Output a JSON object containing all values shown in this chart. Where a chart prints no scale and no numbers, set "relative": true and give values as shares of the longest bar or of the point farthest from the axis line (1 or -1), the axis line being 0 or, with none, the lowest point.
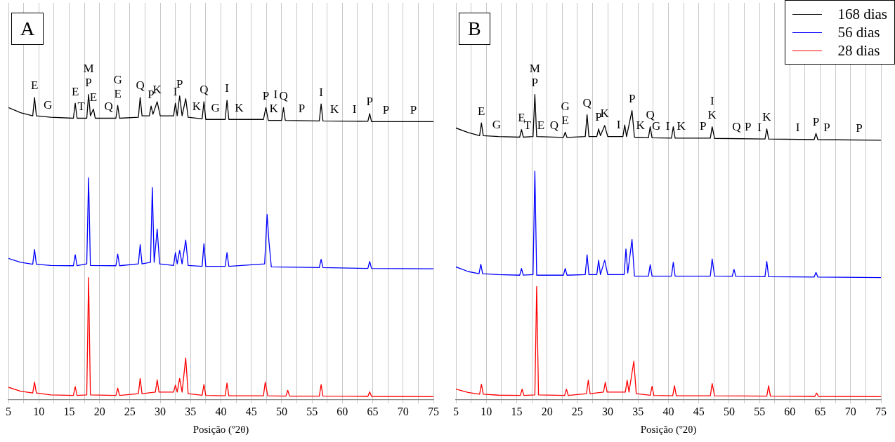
{
  "chart_data": [
    {
      "type": "line",
      "title": "A",
      "xlabel": "Posição (º2θ)",
      "relative": true,
      "grid": "x",
      "marker": "none",
      "line_style": "solid",
      "legend": false,
      "xlim": [
        5,
        75
      ],
      "xticks": [
        5,
        {
          "value": 7.5,
          "label": null
        },
        10,
        {
          "value": 12.5,
          "label": null
        },
        15,
        {
          "value": 17.5,
          "label": null
        },
        20,
        {
          "value": 22.5,
          "label": null
        },
        25,
        {
          "value": 27.5,
          "label": null
        },
        30,
        {
          "value": 32.5,
          "label": null
        },
        35,
        {
          "value": 37.5,
          "label": null
        },
        40,
        {
          "value": 42.5,
          "label": null
        },
        45,
        {
          "value": 47.5,
          "label": null
        },
        50,
        {
          "value": 52.5,
          "label": null
        },
        55,
        {
          "value": 57.5,
          "label": null
        },
        60,
        {
          "value": 62.5,
          "label": null
        },
        65,
        {
          "value": 67.5,
          "label": null
        },
        70,
        {
          "value": 72.5,
          "label": null
        },
        75
      ],
      "series": [
        {
          "color": "#000000",
          "x": [
            5,
            7,
            9,
            9.3,
            9.6,
            12,
            15.7,
            16,
            16.3,
            17.9,
            18.2,
            18.5,
            19,
            19.3,
            22.7,
            23,
            23.3,
            26.4,
            26.7,
            27,
            28.2,
            28.5,
            28.8,
            29.5,
            30,
            32.2,
            32.5,
            32.8,
            33.2,
            33.6,
            34.2,
            34.6,
            36.9,
            37.2,
            37.5,
            40.7,
            41,
            41.3,
            47,
            47.4,
            47.8,
            50,
            50.3,
            50.6,
            56.2,
            56.5,
            56.8,
            64.2,
            64.5,
            64.8,
            75
          ],
          "values": [
            0.957,
            0.94,
            0.93,
            0.99,
            0.93,
            0.925,
            0.922,
            0.971,
            0.922,
            0.922,
            1.0,
            0.93,
            0.952,
            0.922,
            0.922,
            0.964,
            0.922,
            0.925,
            0.99,
            0.93,
            0.93,
            0.962,
            0.935,
            0.976,
            0.93,
            0.93,
            0.971,
            0.93,
            0.995,
            0.93,
            0.986,
            0.925,
            0.92,
            0.976,
            0.918,
            0.918,
            0.981,
            0.918,
            0.918,
            0.957,
            0.915,
            0.915,
            0.957,
            0.915,
            0.913,
            0.969,
            0.913,
            0.912,
            0.937,
            0.911,
            0.911
          ]
        },
        {
          "color": "#0000ff",
          "x": [
            5,
            7,
            9,
            9.3,
            9.6,
            12,
            15.7,
            16,
            16.3,
            17.9,
            18.2,
            18.5,
            22.7,
            23,
            23.3,
            26.4,
            26.7,
            27,
            28.4,
            28.7,
            29,
            29.5,
            29.9,
            32.2,
            32.5,
            32.8,
            33.2,
            33.6,
            34.2,
            34.6,
            36.9,
            37.2,
            37.5,
            40.7,
            41,
            41.3,
            47.2,
            47.6,
            47.9,
            48.3,
            56.2,
            56.5,
            56.8,
            64.2,
            64.5,
            64.8,
            75
          ],
          "values": [
            0.463,
            0.45,
            0.444,
            0.492,
            0.444,
            0.44,
            0.439,
            0.475,
            0.439,
            0.445,
            0.727,
            0.44,
            0.439,
            0.477,
            0.439,
            0.445,
            0.508,
            0.445,
            0.45,
            0.695,
            0.45,
            0.559,
            0.445,
            0.44,
            0.482,
            0.445,
            0.489,
            0.445,
            0.523,
            0.44,
            0.437,
            0.511,
            0.437,
            0.437,
            0.482,
            0.437,
            0.445,
            0.607,
            0.52,
            0.435,
            0.433,
            0.46,
            0.433,
            0.43,
            0.453,
            0.43,
            0.429
          ]
        },
        {
          "color": "#ff0000",
          "x": [
            5,
            7,
            9,
            9.3,
            9.6,
            12,
            15.7,
            16,
            16.3,
            17.9,
            18.2,
            18.5,
            22.7,
            23,
            23.3,
            26.4,
            26.7,
            27,
            29.2,
            29.5,
            29.8,
            32.2,
            32.5,
            32.8,
            33.2,
            33.6,
            34.2,
            34.6,
            36.9,
            37.2,
            37.5,
            40.7,
            41,
            41.3,
            47,
            47.3,
            47.7,
            50.7,
            51,
            51.3,
            56.2,
            56.5,
            56.8,
            64.2,
            64.5,
            64.8,
            75
          ],
          "values": [
            0.041,
            0.028,
            0.022,
            0.058,
            0.022,
            0.016,
            0.014,
            0.043,
            0.014,
            0.016,
            0.4,
            0.016,
            0.014,
            0.038,
            0.014,
            0.02,
            0.07,
            0.02,
            0.025,
            0.065,
            0.025,
            0.025,
            0.048,
            0.025,
            0.07,
            0.025,
            0.137,
            0.02,
            0.015,
            0.05,
            0.014,
            0.013,
            0.055,
            0.013,
            0.013,
            0.058,
            0.013,
            0.012,
            0.031,
            0.012,
            0.012,
            0.05,
            0.012,
            0.011,
            0.026,
            0.011,
            0.01
          ]
        }
      ],
      "annotations": [
        {
          "text": "E",
          "x": 9.3,
          "y": 0.99
        },
        {
          "text": "G",
          "x": 11.5,
          "y": 0.926
        },
        {
          "text": "E",
          "x": 16,
          "y": 0.971
        },
        {
          "text": "T",
          "x": 17.0,
          "y": 0.922
        },
        {
          "text": "P",
          "x": 18.2,
          "y": 1.0
        },
        {
          "text": "M",
          "x": 18.2,
          "y": 1.0
        },
        {
          "text": "E",
          "x": 19,
          "y": 0.952
        },
        {
          "text": "Q",
          "x": 21.5,
          "y": 0.922
        },
        {
          "text": "E",
          "x": 23,
          "y": 0.964
        },
        {
          "text": "G",
          "x": 23,
          "y": 0.964
        },
        {
          "text": "Q",
          "x": 26.7,
          "y": 0.99
        },
        {
          "text": "P",
          "x": 28.5,
          "y": 0.962
        },
        {
          "text": "K",
          "x": 29.5,
          "y": 0.976
        },
        {
          "text": "I",
          "x": 32.5,
          "y": 0.971
        },
        {
          "text": "P",
          "x": 33.2,
          "y": 0.995
        },
        {
          "text": "K",
          "x": 36.0,
          "y": 0.921
        },
        {
          "text": "Q",
          "x": 37.2,
          "y": 0.976
        },
        {
          "text": "G",
          "x": 39.1,
          "y": 0.918
        },
        {
          "text": "I",
          "x": 41,
          "y": 0.981
        },
        {
          "text": "K",
          "x": 43.0,
          "y": 0.918
        },
        {
          "text": "P",
          "x": 47.4,
          "y": 0.957
        },
        {
          "text": "K",
          "x": 48.7,
          "y": 0.915
        },
        {
          "text": "I",
          "x": 49.0,
          "y": 0.915
        },
        {
          "text": "Q",
          "x": 50.3,
          "y": 0.957
        },
        {
          "text": "P",
          "x": 53.3,
          "y": 0.914
        },
        {
          "text": "I",
          "x": 56.5,
          "y": 0.969
        },
        {
          "text": "K",
          "x": 58.7,
          "y": 0.913
        },
        {
          "text": "I",
          "x": 62.0,
          "y": 0.912
        },
        {
          "text": "P",
          "x": 64.5,
          "y": 0.937
        },
        {
          "text": "P",
          "x": 67.2,
          "y": 0.911
        },
        {
          "text": "P",
          "x": 71.7,
          "y": 0.911
        }
      ]
    },
    {
      "type": "line",
      "title": "B",
      "xlabel": "Posição (º2θ)",
      "relative": true,
      "grid": "x",
      "marker": "none",
      "line_style": "solid",
      "legend": "top right",
      "xlim": [
        5,
        75
      ],
      "xticks": [
        5,
        {
          "value": 7.5,
          "label": null
        },
        10,
        {
          "value": 12.5,
          "label": null
        },
        15,
        {
          "value": 17.5,
          "label": null
        },
        20,
        {
          "value": 22.5,
          "label": null
        },
        25,
        {
          "value": 27.5,
          "label": null
        },
        30,
        {
          "value": 32.5,
          "label": null
        },
        35,
        {
          "value": 37.5,
          "label": null
        },
        40,
        {
          "value": 42.5,
          "label": null
        },
        45,
        {
          "value": 47.5,
          "label": null
        },
        50,
        {
          "value": 52.5,
          "label": null
        },
        55,
        {
          "value": 57.5,
          "label": null
        },
        60,
        {
          "value": 62.5,
          "label": null
        },
        65,
        {
          "value": 67.5,
          "label": null
        },
        70,
        {
          "value": 72.5,
          "label": null
        },
        75
      ],
      "series": [
        {
          "name": "168 dias",
          "color": "#000000",
          "x": [
            5,
            7,
            8.9,
            9.2,
            9.5,
            12,
            15.5,
            15.8,
            16.1,
            17.7,
            18,
            18.3,
            22.7,
            23,
            23.3,
            26.3,
            26.6,
            26.9,
            28.2,
            28.5,
            28.8,
            29.5,
            30,
            32.5,
            32.8,
            33.1,
            34,
            34.4,
            36.7,
            37,
            37.3,
            40.5,
            40.8,
            41.1,
            46.9,
            47.2,
            47.6,
            55.9,
            56.2,
            56.5,
            64,
            64.3,
            64.6,
            75
          ],
          "values": [
            0.89,
            0.875,
            0.865,
            0.907,
            0.865,
            0.862,
            0.86,
            0.885,
            0.86,
            0.862,
            1.0,
            0.862,
            0.859,
            0.876,
            0.859,
            0.862,
            0.934,
            0.862,
            0.862,
            0.887,
            0.865,
            0.898,
            0.862,
            0.862,
            0.9,
            0.862,
            0.947,
            0.86,
            0.858,
            0.894,
            0.858,
            0.857,
            0.894,
            0.857,
            0.857,
            0.894,
            0.856,
            0.854,
            0.887,
            0.854,
            0.852,
            0.872,
            0.852,
            0.85
          ]
        },
        {
          "name": "56 dias",
          "color": "#0000ff",
          "x": [
            5,
            7,
            8.8,
            9.1,
            9.4,
            12,
            15.5,
            15.8,
            16.1,
            17.7,
            18,
            18.3,
            22.7,
            23,
            23.3,
            26.3,
            26.6,
            26.9,
            28.2,
            28.5,
            28.8,
            29.5,
            30,
            32.7,
            33,
            33.3,
            34,
            34.4,
            36.7,
            37,
            37.3,
            40.5,
            40.8,
            41.1,
            46.9,
            47.2,
            47.6,
            50.5,
            50.8,
            51.1,
            55.9,
            56.2,
            56.5,
            64,
            64.3,
            64.6,
            75
          ],
          "values": [
            0.435,
            0.42,
            0.413,
            0.444,
            0.413,
            0.41,
            0.408,
            0.43,
            0.408,
            0.41,
            0.748,
            0.408,
            0.408,
            0.43,
            0.408,
            0.41,
            0.475,
            0.41,
            0.41,
            0.457,
            0.41,
            0.457,
            0.41,
            0.41,
            0.494,
            0.415,
            0.525,
            0.405,
            0.405,
            0.442,
            0.405,
            0.405,
            0.45,
            0.405,
            0.405,
            0.461,
            0.405,
            0.404,
            0.427,
            0.404,
            0.403,
            0.453,
            0.403,
            0.402,
            0.417,
            0.402,
            0.4
          ]
        },
        {
          "name": "28 dias",
          "color": "#ff0000",
          "x": [
            5,
            7,
            8.9,
            9.2,
            9.5,
            12,
            15.6,
            15.9,
            16.2,
            18,
            18.3,
            18.6,
            22.9,
            23.2,
            23.5,
            26.5,
            26.8,
            27.1,
            29.3,
            29.6,
            29.9,
            32.9,
            33.2,
            33.5,
            34.3,
            34.7,
            37,
            37.3,
            37.6,
            40.7,
            41,
            41.3,
            46.9,
            47.2,
            47.6,
            56.2,
            56.5,
            56.8,
            64.1,
            64.4,
            64.7,
            75
          ],
          "values": [
            0.035,
            0.024,
            0.018,
            0.051,
            0.018,
            0.015,
            0.014,
            0.035,
            0.014,
            0.016,
            0.371,
            0.016,
            0.014,
            0.035,
            0.014,
            0.02,
            0.064,
            0.02,
            0.025,
            0.057,
            0.025,
            0.025,
            0.064,
            0.025,
            0.126,
            0.02,
            0.015,
            0.044,
            0.014,
            0.013,
            0.046,
            0.013,
            0.013,
            0.053,
            0.013,
            0.012,
            0.046,
            0.012,
            0.011,
            0.022,
            0.011,
            0.01
          ]
        }
      ],
      "annotations": [
        {
          "text": "E",
          "x": 9.2,
          "y": 0.907
        },
        {
          "text": "G",
          "x": 11.7,
          "y": 0.862
        },
        {
          "text": "E",
          "x": 15.8,
          "y": 0.885
        },
        {
          "text": "T",
          "x": 16.8,
          "y": 0.861
        },
        {
          "text": "P",
          "x": 18,
          "y": 1.0
        },
        {
          "text": "M",
          "x": 18,
          "y": 1.0
        },
        {
          "text": "E",
          "x": 19,
          "y": 0.861
        },
        {
          "text": "Q",
          "x": 21.2,
          "y": 0.86
        },
        {
          "text": "E",
          "x": 23,
          "y": 0.876
        },
        {
          "text": "G",
          "x": 23,
          "y": 0.876
        },
        {
          "text": "Q",
          "x": 26.6,
          "y": 0.934
        },
        {
          "text": "P",
          "x": 28.5,
          "y": 0.887
        },
        {
          "text": "K",
          "x": 29.5,
          "y": 0.898
        },
        {
          "text": "I",
          "x": 31.8,
          "y": 0.862
        },
        {
          "text": "P",
          "x": 34,
          "y": 0.947
        },
        {
          "text": "K",
          "x": 35.4,
          "y": 0.859
        },
        {
          "text": "Q",
          "x": 37,
          "y": 0.894
        },
        {
          "text": "G",
          "x": 38.0,
          "y": 0.858
        },
        {
          "text": "I",
          "x": 39.9,
          "y": 0.857
        },
        {
          "text": "K",
          "x": 42.1,
          "y": 0.857
        },
        {
          "text": "P",
          "x": 45.7,
          "y": 0.857
        },
        {
          "text": "K",
          "x": 47.2,
          "y": 0.894
        },
        {
          "text": "I",
          "x": 47.2,
          "y": 0.894
        },
        {
          "text": "Q",
          "x": 51.2,
          "y": 0.855
        },
        {
          "text": "P",
          "x": 53.1,
          "y": 0.855
        },
        {
          "text": "I",
          "x": 55.0,
          "y": 0.854
        },
        {
          "text": "K",
          "x": 56.2,
          "y": 0.887
        },
        {
          "text": "I",
          "x": 61.3,
          "y": 0.853
        },
        {
          "text": "P",
          "x": 64.3,
          "y": 0.872
        },
        {
          "text": "P",
          "x": 66.1,
          "y": 0.852
        },
        {
          "text": "P",
          "x": 71.4,
          "y": 0.851
        }
      ]
    }
  ]
}
